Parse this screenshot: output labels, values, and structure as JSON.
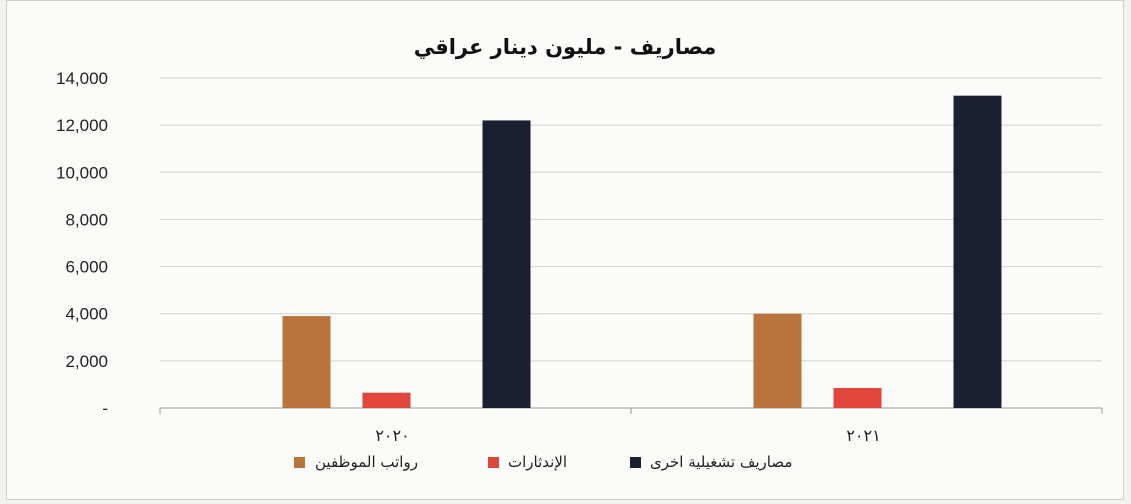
{
  "chart_data": {
    "type": "bar",
    "title": "مصاريف - مليون دينار عراقي",
    "categories": [
      "٢٠٢٠",
      "٢٠٢١"
    ],
    "series": [
      {
        "name": "رواتب الموظفين",
        "color": "#b8743a",
        "values": [
          3900,
          4000
        ]
      },
      {
        "name": "الإندثارات",
        "color": "#e0463c",
        "values": [
          650,
          850
        ]
      },
      {
        "name": "مصاريف تشغيلية اخرى",
        "color": "#1b2030",
        "values": [
          12200,
          13250
        ]
      }
    ],
    "yticks": [
      "-",
      "2,000",
      "4,000",
      "6,000",
      "8,000",
      "10,000",
      "12,000",
      "14,000"
    ],
    "ylim": [
      0,
      14000
    ],
    "grid": true,
    "legend_position": "bottom"
  }
}
